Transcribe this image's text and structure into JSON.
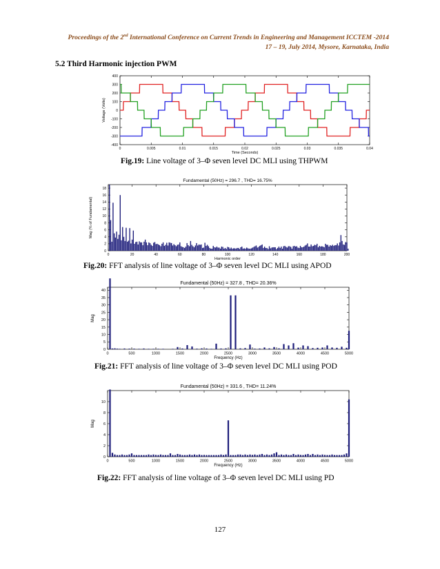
{
  "header": {
    "line1_pre": "Proceedings of the 2",
    "line1_sup": "nd",
    "line1_post": " International Conference on Current Trends in Engineering and Management ICCTEM -2014",
    "line2": "17 – 19, July 2014, Mysore, Karnataka, India"
  },
  "section_title": "5.2 Third Harmonic injection PWM",
  "page_number": "127",
  "figures": [
    {
      "label": "Fig.19:",
      "text": " Line voltage of 3–Φ seven level DC MLI using THPWM"
    },
    {
      "label": "Fig.20:",
      "text": " FFT analysis of line voltage of 3–Φ seven level DC MLI using APOD"
    },
    {
      "label": "Fig.21:",
      "text": " FFT analysis of line voltage of 3–Φ seven level DC MLI using POD"
    },
    {
      "label": "Fig.22:",
      "text": " FFT analysis of line voltage of 3–Φ seven level DC MLI using PD"
    }
  ],
  "chart_data": [
    {
      "type": "line",
      "title": "",
      "xlabel": "Time (Seconds)",
      "ylabel": "Voltage (Volts)",
      "xlim": [
        0,
        0.04
      ],
      "ylim": [
        -400,
        400
      ],
      "xticks": [
        "0",
        "0.005",
        "0.01",
        "0.015",
        "0.02",
        "0.025",
        "0.03",
        "0.035",
        "0.04"
      ],
      "yticks": [
        "-400",
        "-300",
        "-200",
        "-100",
        "0",
        "100",
        "200",
        "300",
        "400"
      ],
      "frequency_hz": 50,
      "amplitude": 300,
      "levels": [
        -300,
        -200,
        -100,
        0,
        100,
        200,
        300
      ],
      "series": [
        {
          "color": "#e02020",
          "phase_deg": 0
        },
        {
          "color": "#2020e0",
          "phase_deg": -120
        },
        {
          "color": "#20a020",
          "phase_deg": 120
        }
      ],
      "grid": false
    },
    {
      "type": "bar",
      "title": "Fundamental (50Hz) = 296.7 , THD= 16.75%",
      "xlabel": "Harmonic order",
      "ylabel": "Mag (% of Fundamental)",
      "xlim": [
        0,
        200
      ],
      "ylim": [
        0,
        19
      ],
      "xticks": [
        "0",
        "20",
        "40",
        "60",
        "80",
        "100",
        "120",
        "140",
        "160",
        "180",
        "200"
      ],
      "yticks": [
        "0",
        "2",
        "4",
        "6",
        "8",
        "10",
        "12",
        "14",
        "16",
        "18"
      ],
      "values": [
        0,
        19,
        8.8,
        2.6,
        13.8,
        5,
        3.8,
        5.5,
        3.4,
        4.6,
        16,
        3,
        6.8,
        4,
        2.8,
        6.6,
        2.6,
        2.9,
        6.5,
        2.1,
        3.2,
        5.8,
        2,
        2.5,
        2.6,
        1.8,
        2.7,
        2.4,
        2.4,
        1.6,
        2.6,
        3.2,
        2.4,
        1.6,
        2.4,
        2.2,
        1.7,
        1.4,
        2.3,
        2.5,
        1.9,
        2,
        1.8,
        1.6,
        1.3,
        2,
        2.4,
        1.4,
        1.7,
        2.3,
        1.5,
        2.4,
        2.3,
        2.2,
        1.5,
        1.9,
        1.6,
        1.3,
        1.7,
        1.8,
        2.4,
        1.3,
        1.1,
        1,
        0.8,
        1.2,
        2.2,
        1.6,
        1.3,
        2.8,
        1.7,
        1.3,
        1,
        1.5,
        2.2,
        1.5,
        1.8,
        1.7,
        1.8,
        0.8,
        0.9,
        2.3,
        1.4,
        1.7,
        1.3,
        0.8,
        0.6,
        0.6,
        1.4,
        1,
        0.9,
        1.2,
        0.9,
        0.9,
        0.6,
        1.2,
        1.1,
        0.6,
        0.8,
        0.5,
        1.1,
        1,
        0.6,
        0.9,
        0.6,
        0.7,
        0.7,
        0.6,
        0.8,
        0.8,
        0.5,
        1,
        1.2,
        0.6,
        0.7,
        0.6,
        0.9,
        0.7,
        0.6,
        0.6,
        0.7,
        0.9,
        1.1,
        1.3,
        1.5,
        0.9,
        1.1,
        1.4,
        1.6,
        1.8,
        0.8,
        1.2,
        0.8,
        0.8,
        0.5,
        1.3,
        0.7,
        0.9,
        1,
        1,
        1,
        0.5,
        0.8,
        1.2,
        0.8,
        1.2,
        0.6,
        1.3,
        1.4,
        1.1,
        0.9,
        1.3,
        1.3,
        1.1,
        0.6,
        1.3,
        1.4,
        1.2,
        1.3,
        0.9,
        0.8,
        1.4,
        1,
        1,
        1.2,
        1.5,
        1.7,
        2.1,
        1.2,
        1.2,
        1.8,
        1.3,
        1.4,
        1.7,
        1.6,
        2,
        1,
        1.4,
        1.2,
        1.3,
        1.2,
        1,
        2,
        1.7,
        1.7,
        1.2,
        1.6,
        1.4,
        1.7,
        1.4,
        1.6,
        1.6,
        2.1,
        1.5,
        2.4,
        4.5,
        2.8,
        1.8,
        1.7,
        2.5,
        2.4,
        0.6
      ],
      "grid": false
    },
    {
      "type": "bar",
      "title": "Fundamental (50Hz) = 327.8 , THD= 20.36%",
      "xlabel": "Frequency (Hz)",
      "ylabel": "Mag",
      "xlim": [
        0,
        5000
      ],
      "ylim": [
        0,
        42
      ],
      "xticks": [
        "0",
        "500",
        "1000",
        "1500",
        "2000",
        "2500",
        "3000",
        "3500",
        "4000",
        "4500",
        "5000"
      ],
      "yticks": [
        "0",
        "5",
        "10",
        "15",
        "20",
        "25",
        "30",
        "35",
        "40"
      ],
      "bars": [
        [
          50,
          48
        ],
        [
          100,
          0.5
        ],
        [
          150,
          0.6
        ],
        [
          200,
          0.4
        ],
        [
          250,
          0.3
        ],
        [
          350,
          0.5
        ],
        [
          450,
          0.4
        ],
        [
          550,
          0.4
        ],
        [
          650,
          0.3
        ],
        [
          750,
          0.5
        ],
        [
          850,
          0.3
        ],
        [
          950,
          0.3
        ],
        [
          1050,
          0.3
        ],
        [
          1150,
          0.3
        ],
        [
          1350,
          0.3
        ],
        [
          1450,
          1.5
        ],
        [
          1550,
          0.5
        ],
        [
          1650,
          2.8
        ],
        [
          1750,
          1.9
        ],
        [
          1850,
          0.4
        ],
        [
          1950,
          0.6
        ],
        [
          2050,
          0.5
        ],
        [
          2150,
          0.3
        ],
        [
          2250,
          3.8
        ],
        [
          2350,
          0.5
        ],
        [
          2450,
          0.6
        ],
        [
          2550,
          36.5
        ],
        [
          2650,
          36.5
        ],
        [
          2750,
          0.6
        ],
        [
          2850,
          0.8
        ],
        [
          2950,
          3.2
        ],
        [
          3050,
          0.4
        ],
        [
          3150,
          0.5
        ],
        [
          3250,
          1.2
        ],
        [
          3350,
          0.6
        ],
        [
          3450,
          1.5
        ],
        [
          3550,
          0.6
        ],
        [
          3650,
          3.5
        ],
        [
          3750,
          2.6
        ],
        [
          3850,
          4.1
        ],
        [
          3950,
          1.1
        ],
        [
          4050,
          2.6
        ],
        [
          4150,
          2.1
        ],
        [
          4250,
          0.8
        ],
        [
          4350,
          1
        ],
        [
          4450,
          1.2
        ],
        [
          4550,
          2.6
        ],
        [
          4650,
          1.2
        ],
        [
          4750,
          1
        ],
        [
          4850,
          1.7
        ],
        [
          4950,
          1
        ],
        [
          5000,
          12.5
        ]
      ],
      "grid": false
    },
    {
      "type": "bar",
      "title": "Fundamental (50Hz) = 331.6 , THD= 11.24%",
      "xlabel": "Frequency (Hz)",
      "ylabel": "Mag",
      "xlim": [
        0,
        5000
      ],
      "ylim": [
        0,
        12
      ],
      "xticks": [
        "0",
        "500",
        "1000",
        "1500",
        "2000",
        "2500",
        "3000",
        "3500",
        "4000",
        "4500",
        "5000"
      ],
      "yticks": [
        "0",
        "2",
        "4",
        "6",
        "8",
        "10"
      ],
      "bars": [
        [
          50,
          12.2
        ],
        [
          100,
          0.7
        ],
        [
          150,
          0.4
        ],
        [
          200,
          0.3
        ],
        [
          250,
          0.3
        ],
        [
          300,
          0.4
        ],
        [
          350,
          0.3
        ],
        [
          400,
          0.3
        ],
        [
          450,
          0.4
        ],
        [
          500,
          0.6
        ],
        [
          550,
          0.3
        ],
        [
          600,
          0.3
        ],
        [
          650,
          0.3
        ],
        [
          700,
          0.3
        ],
        [
          750,
          0.3
        ],
        [
          800,
          0.3
        ],
        [
          850,
          0.4
        ],
        [
          900,
          0.3
        ],
        [
          950,
          0.4
        ],
        [
          1000,
          0.3
        ],
        [
          1050,
          0.3
        ],
        [
          1100,
          0.4
        ],
        [
          1150,
          0.3
        ],
        [
          1200,
          0.3
        ],
        [
          1250,
          0.3
        ],
        [
          1300,
          0.6
        ],
        [
          1350,
          0.3
        ],
        [
          1400,
          0.3
        ],
        [
          1450,
          0.5
        ],
        [
          1500,
          0.4
        ],
        [
          1550,
          0.3
        ],
        [
          1600,
          0.3
        ],
        [
          1650,
          0.3
        ],
        [
          1700,
          0.4
        ],
        [
          1750,
          0.3
        ],
        [
          1800,
          0.4
        ],
        [
          1850,
          0.3
        ],
        [
          1900,
          0.4
        ],
        [
          1950,
          0.3
        ],
        [
          2000,
          0.3
        ],
        [
          2050,
          0.3
        ],
        [
          2100,
          0.3
        ],
        [
          2150,
          0.3
        ],
        [
          2200,
          0.3
        ],
        [
          2250,
          0.3
        ],
        [
          2300,
          0.3
        ],
        [
          2350,
          0.4
        ],
        [
          2400,
          0.3
        ],
        [
          2450,
          0.4
        ],
        [
          2500,
          6.6
        ],
        [
          2550,
          0.3
        ],
        [
          2600,
          0.3
        ],
        [
          2650,
          0.3
        ],
        [
          2700,
          0.4
        ],
        [
          2750,
          0.4
        ],
        [
          2800,
          0.3
        ],
        [
          2850,
          0.4
        ],
        [
          2900,
          0.3
        ],
        [
          2950,
          0.4
        ],
        [
          3000,
          0.3
        ],
        [
          3050,
          0.4
        ],
        [
          3100,
          0.3
        ],
        [
          3150,
          0.4
        ],
        [
          3200,
          0.5
        ],
        [
          3250,
          0.3
        ],
        [
          3300,
          0.4
        ],
        [
          3350,
          0.3
        ],
        [
          3400,
          0.4
        ],
        [
          3450,
          0.6
        ],
        [
          3500,
          0.8
        ],
        [
          3550,
          0.3
        ],
        [
          3600,
          0.4
        ],
        [
          3650,
          0.3
        ],
        [
          3700,
          0.4
        ],
        [
          3750,
          0.3
        ],
        [
          3800,
          0.3
        ],
        [
          3850,
          0.5
        ],
        [
          3900,
          0.3
        ],
        [
          3950,
          0.4
        ],
        [
          4000,
          0.3
        ],
        [
          4050,
          0.3
        ],
        [
          4100,
          0.4
        ],
        [
          4150,
          0.5
        ],
        [
          4200,
          0.3
        ],
        [
          4250,
          0.5
        ],
        [
          4300,
          0.3
        ],
        [
          4350,
          0.4
        ],
        [
          4400,
          0.3
        ],
        [
          4450,
          0.4
        ],
        [
          4500,
          0.3
        ],
        [
          4550,
          0.3
        ],
        [
          4600,
          0.3
        ],
        [
          4650,
          0.4
        ],
        [
          4700,
          0.3
        ],
        [
          4750,
          0.3
        ],
        [
          4800,
          0.3
        ],
        [
          4850,
          0.3
        ],
        [
          4900,
          0.4
        ],
        [
          4950,
          0.6
        ],
        [
          5000,
          10.4
        ]
      ],
      "grid": false
    }
  ]
}
